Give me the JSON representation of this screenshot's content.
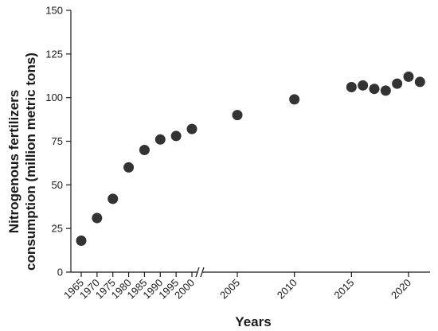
{
  "chart_data": {
    "type": "scatter",
    "xlabel": "Years",
    "ylabel_lines": [
      "Nitrogenous fertilizers",
      "consumption (million metric tons)"
    ],
    "ylim": [
      0,
      150
    ],
    "y_ticks": [
      0,
      25,
      50,
      75,
      100,
      125,
      150
    ],
    "x_axis_break": true,
    "x_segments": [
      {
        "x_ticks": [
          1965,
          1970,
          1975,
          1980,
          1985,
          1990,
          1995,
          2000
        ]
      },
      {
        "x_ticks": [
          2005,
          2010,
          2015,
          2020
        ]
      }
    ],
    "grid": false,
    "marker_color": "#333333",
    "points": [
      {
        "x": 1965,
        "y": 18
      },
      {
        "x": 1970,
        "y": 31
      },
      {
        "x": 1975,
        "y": 42
      },
      {
        "x": 1980,
        "y": 60
      },
      {
        "x": 1985,
        "y": 70
      },
      {
        "x": 1990,
        "y": 76
      },
      {
        "x": 1995,
        "y": 78
      },
      {
        "x": 2000,
        "y": 82
      },
      {
        "x": 2005,
        "y": 90
      },
      {
        "x": 2010,
        "y": 99
      },
      {
        "x": 2015,
        "y": 106
      },
      {
        "x": 2016,
        "y": 107
      },
      {
        "x": 2017,
        "y": 105
      },
      {
        "x": 2018,
        "y": 104
      },
      {
        "x": 2019,
        "y": 108
      },
      {
        "x": 2020,
        "y": 112
      },
      {
        "x": 2021,
        "y": 109
      }
    ]
  }
}
